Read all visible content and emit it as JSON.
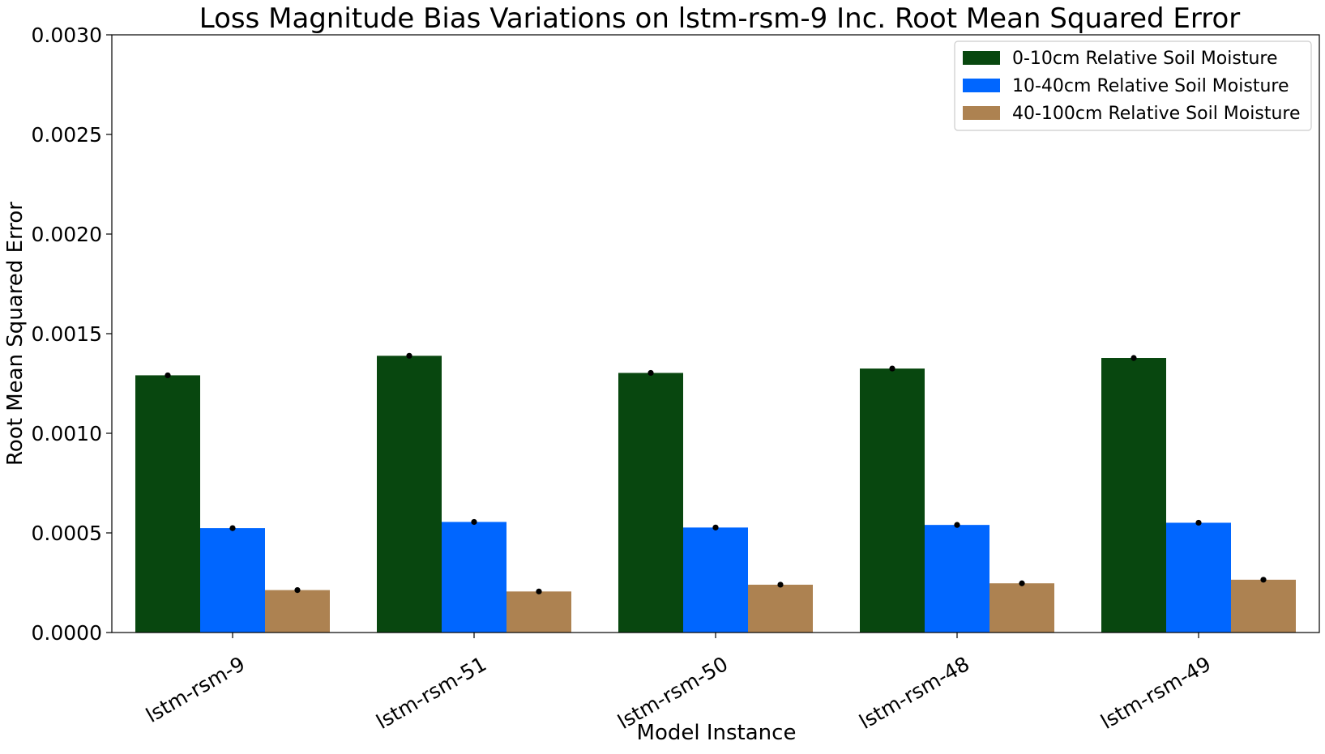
{
  "chart_data": {
    "type": "bar",
    "title": "Loss Magnitude Bias Variations on lstm-rsm-9 Inc. Root Mean Squared Error",
    "xlabel": "Model Instance",
    "ylabel": "Root Mean Squared Error",
    "categories": [
      "lstm-rsm-9",
      "lstm-rsm-51",
      "lstm-rsm-50",
      "lstm-rsm-48",
      "lstm-rsm-49"
    ],
    "ylim": [
      0,
      0.003
    ],
    "yticks": [
      "0.0000",
      "0.0005",
      "0.0010",
      "0.0015",
      "0.0020",
      "0.0025",
      "0.0030"
    ],
    "ytick_values": [
      0,
      0.0005,
      0.001,
      0.0015,
      0.002,
      0.0025,
      0.003
    ],
    "legend_position": "top-right",
    "grid": false,
    "series": [
      {
        "name": "0-10cm Relative Soil Moisture",
        "color": "#08470f",
        "values": [
          0.001291,
          0.001389,
          0.001303,
          0.001325,
          0.001378
        ]
      },
      {
        "name": "10-40cm Relative Soil Moisture",
        "color": "#0066ff",
        "values": [
          0.000524,
          0.000555,
          0.000527,
          0.00054,
          0.000551
        ]
      },
      {
        "name": "40-100cm Relative Soil Moisture",
        "color": "#ad8251",
        "values": [
          0.000213,
          0.000206,
          0.00024,
          0.000247,
          0.000265
        ]
      }
    ]
  }
}
